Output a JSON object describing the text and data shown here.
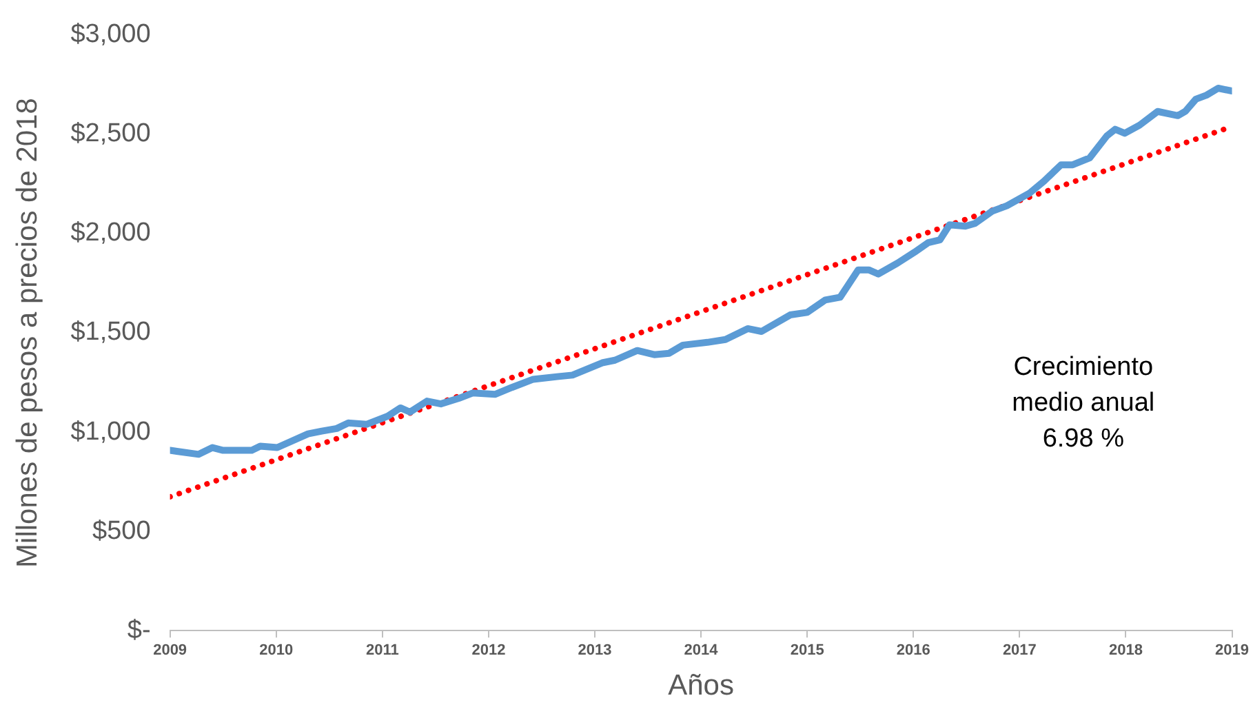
{
  "chart_data": {
    "type": "line",
    "xlabel": "Años",
    "ylabel": "Millones de pesos a precios de 2018",
    "xlim": [
      2009,
      2019
    ],
    "xticks": [
      2009,
      2010,
      2011,
      2012,
      2013,
      2014,
      2015,
      2016,
      2017,
      2018,
      2019
    ],
    "ylim": [
      0,
      3000
    ],
    "yticks": [
      {
        "value": 0,
        "label": "$-"
      },
      {
        "value": 500,
        "label": "$500"
      },
      {
        "value": 1000,
        "label": "$1,000"
      },
      {
        "value": 1500,
        "label": "$1,500"
      },
      {
        "value": 2000,
        "label": "$2,000"
      },
      {
        "value": 2500,
        "label": "$2,500"
      },
      {
        "value": 3000,
        "label": "$3,000"
      }
    ],
    "grid": false,
    "legend": false,
    "marker": "none",
    "series": [
      {
        "color": "#5b9bd5",
        "line_style": "solid",
        "x": [
          2009.0,
          2009.27,
          2009.4,
          2009.5,
          2009.77,
          2009.85,
          2010.01,
          2010.3,
          2010.43,
          2010.57,
          2010.68,
          2010.85,
          2011.05,
          2011.17,
          2011.26,
          2011.42,
          2011.55,
          2011.72,
          2011.85,
          2012.06,
          2012.22,
          2012.42,
          2012.66,
          2012.79,
          2013.07,
          2013.19,
          2013.4,
          2013.56,
          2013.7,
          2013.83,
          2014.06,
          2014.23,
          2014.44,
          2014.57,
          2014.84,
          2015.0,
          2015.17,
          2015.31,
          2015.48,
          2015.58,
          2015.67,
          2015.85,
          2016.01,
          2016.14,
          2016.25,
          2016.34,
          2016.49,
          2016.58,
          2016.74,
          2016.88,
          2017.09,
          2017.23,
          2017.39,
          2017.5,
          2017.66,
          2017.82,
          2017.9,
          2017.99,
          2018.13,
          2018.3,
          2018.49,
          2018.56,
          2018.66,
          2018.76,
          2018.87,
          2019.0
        ],
        "values": [
          908,
          888,
          922,
          908,
          908,
          929,
          922,
          991,
          1005,
          1018,
          1046,
          1039,
          1080,
          1122,
          1101,
          1156,
          1142,
          1170,
          1197,
          1190,
          1225,
          1266,
          1280,
          1287,
          1349,
          1362,
          1411,
          1390,
          1397,
          1438,
          1452,
          1466,
          1521,
          1507,
          1590,
          1603,
          1665,
          1679,
          1817,
          1817,
          1796,
          1851,
          1906,
          1954,
          1968,
          2044,
          2037,
          2051,
          2112,
          2140,
          2202,
          2264,
          2346,
          2346,
          2381,
          2491,
          2525,
          2505,
          2546,
          2615,
          2594,
          2615,
          2677,
          2697,
          2732,
          2718
        ]
      },
      {
        "color": "#ff0000",
        "line_style": "dotted",
        "x": [
          2009,
          2019
        ],
        "values": [
          674,
          2539
        ]
      }
    ],
    "annotations": [
      "Crecimiento\nmedio anual\n6.98 %"
    ]
  }
}
